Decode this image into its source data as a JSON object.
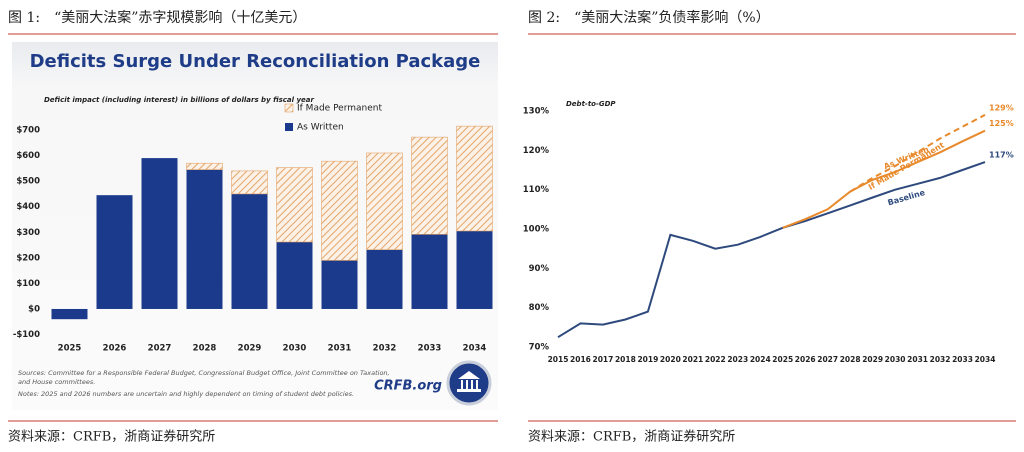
{
  "figures": [
    {
      "caption": "图 1:　“美丽大法案”赤字规模影响（十亿美元）",
      "source": "资料来源：CRFB，浙商证券研究所"
    },
    {
      "caption": "图 2:　“美丽大法案”负债率影响（%）",
      "source": "资料来源：CRFB，浙商证券研究所"
    }
  ],
  "chart_data": [
    {
      "type": "bar",
      "stacked": true,
      "title": "Deficits Surge Under Reconciliation Package",
      "subtitle": "Deficit impact (including interest) in billions of dollars by fiscal year",
      "categories": [
        "2025",
        "2026",
        "2027",
        "2028",
        "2029",
        "2030",
        "2031",
        "2032",
        "2033",
        "2034"
      ],
      "series": [
        {
          "name": "As Written",
          "color": "#1b3a8c",
          "values": [
            -40,
            445,
            590,
            545,
            450,
            262,
            190,
            232,
            292,
            305
          ]
        },
        {
          "name": "If Made Permanent",
          "color": "#e3a56a",
          "hatch": true,
          "values": [
            0,
            0,
            0,
            25,
            90,
            291,
            388,
            378,
            380,
            410
          ]
        }
      ],
      "ylim": [
        -110,
        730
      ],
      "yticks": [
        {
          "value": -100,
          "label": "-$100"
        },
        {
          "value": 0,
          "label": "$0"
        },
        {
          "value": 100,
          "label": "$100"
        },
        {
          "value": 200,
          "label": "$200"
        },
        {
          "value": 300,
          "label": "$300"
        },
        {
          "value": 400,
          "label": "$400"
        },
        {
          "value": 500,
          "label": "$500"
        },
        {
          "value": 600,
          "label": "$600"
        },
        {
          "value": 700,
          "label": "$700"
        }
      ],
      "grid": false,
      "notes": [
        "Sources: Committee for a Responsible Federal Budget, Congressional Budget Office, Joint Committee on Taxation,",
        "and House committees.",
        "Notes: 2025 and 2026 numbers are uncertain and highly dependent on timing of student debt policies."
      ],
      "logo": "CRFB.org"
    },
    {
      "type": "line",
      "subtitle": "Debt-to-GDP",
      "x": [
        2015,
        2016,
        2017,
        2018,
        2019,
        2020,
        2021,
        2022,
        2023,
        2024,
        2025,
        2026,
        2027,
        2028,
        2029,
        2030,
        2031,
        2032,
        2033,
        2034
      ],
      "xlim": [
        2015,
        2034
      ],
      "xticks": [
        2015,
        2016,
        2017,
        2018,
        2019,
        2020,
        2021,
        2022,
        2023,
        2024,
        2025,
        2026,
        2027,
        2028,
        2029,
        2030,
        2031,
        2032,
        2033,
        2034
      ],
      "series": [
        {
          "name": "Baseline",
          "color": "#2e4a7d",
          "dashed": false,
          "values": [
            72.5,
            76,
            75.7,
            77,
            79,
            98.5,
            97,
            95,
            96,
            98,
            100.3,
            102,
            104,
            106,
            108,
            110,
            111.5,
            113,
            115,
            117
          ],
          "value_labels": [
            null,
            null,
            null,
            null,
            null,
            null,
            null,
            null,
            null,
            null,
            null,
            null,
            null,
            null,
            null,
            null,
            null,
            null,
            null,
            "117%"
          ]
        },
        {
          "name": "As Written",
          "color": "#e8892b",
          "dashed": false,
          "values": [
            null,
            null,
            null,
            null,
            null,
            null,
            null,
            null,
            null,
            null,
            100.3,
            102.5,
            105,
            109.5,
            112.5,
            114.5,
            117,
            119.5,
            122.3,
            125
          ],
          "value_labels": [
            null,
            null,
            null,
            null,
            null,
            null,
            null,
            null,
            null,
            null,
            null,
            null,
            null,
            null,
            null,
            null,
            null,
            null,
            null,
            "125%"
          ]
        },
        {
          "name": "If Made Permanent",
          "color": "#e8892b",
          "dashed": true,
          "values": [
            null,
            null,
            null,
            null,
            null,
            null,
            null,
            null,
            null,
            null,
            null,
            null,
            null,
            109.5,
            113,
            116,
            119.5,
            123,
            126,
            129
          ],
          "value_labels": [
            null,
            null,
            null,
            null,
            null,
            null,
            null,
            null,
            null,
            null,
            null,
            null,
            null,
            null,
            null,
            null,
            null,
            null,
            null,
            "129%"
          ]
        }
      ],
      "ylim": [
        70,
        130
      ],
      "yticks": [
        {
          "value": 70,
          "label": "70%"
        },
        {
          "value": 80,
          "label": "80%"
        },
        {
          "value": 90,
          "label": "90%"
        },
        {
          "value": 100,
          "label": "100%"
        },
        {
          "value": 110,
          "label": "110%"
        },
        {
          "value": 120,
          "label": "120%"
        },
        {
          "value": 130,
          "label": "130%"
        }
      ],
      "grid": false
    }
  ]
}
